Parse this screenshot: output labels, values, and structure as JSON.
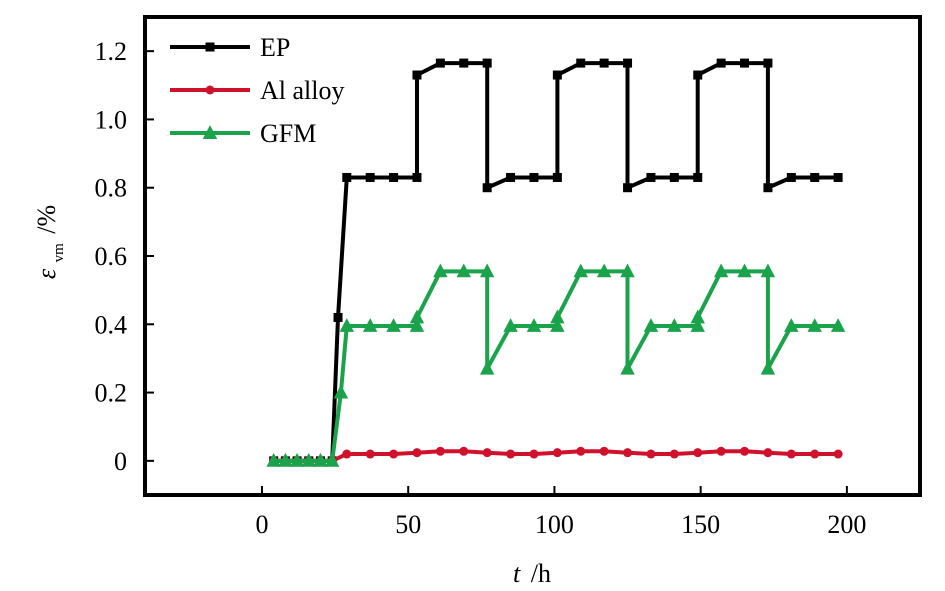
{
  "chart_data": {
    "type": "line",
    "xlabel": {
      "symbol": "t",
      "unit": "/h"
    },
    "ylabel": {
      "symbol": "ε",
      "subscript": "vm",
      "unit": "/%"
    },
    "xlim": [
      -40,
      225
    ],
    "ylim": [
      -0.1,
      1.3
    ],
    "xticks": [
      0,
      50,
      100,
      150,
      200
    ],
    "xtick_labels": [
      "0",
      "50",
      "100",
      "150",
      "200"
    ],
    "yticks": [
      0,
      0.2,
      0.4,
      0.6,
      0.8,
      1.0,
      1.2
    ],
    "ytick_labels": [
      "0",
      "0.2",
      "0.4",
      "0.6",
      "0.8",
      "1.0",
      "1.2"
    ],
    "grid": false,
    "legend_position": "top-left",
    "series": [
      {
        "name": "EP",
        "color": "#000000",
        "marker": "square",
        "x": [
          4,
          8,
          12,
          16,
          20,
          24,
          26,
          29,
          37,
          45,
          53,
          53,
          61,
          69,
          77,
          77,
          85,
          93,
          101,
          101,
          109,
          117,
          125,
          125,
          133,
          141,
          149,
          149,
          157,
          165,
          173,
          173,
          181,
          189,
          197
        ],
        "y": [
          0,
          0,
          0,
          0,
          0,
          0,
          0.42,
          0.83,
          0.83,
          0.83,
          0.83,
          1.13,
          1.165,
          1.165,
          1.165,
          0.8,
          0.83,
          0.83,
          0.83,
          1.13,
          1.165,
          1.165,
          1.165,
          0.8,
          0.83,
          0.83,
          0.83,
          1.13,
          1.165,
          1.165,
          1.165,
          0.8,
          0.83,
          0.83,
          0.83
        ]
      },
      {
        "name": "Al alloy",
        "color": "#d0112b",
        "marker": "circle",
        "x": [
          4,
          8,
          12,
          16,
          20,
          24,
          29,
          37,
          45,
          53,
          61,
          69,
          77,
          85,
          93,
          101,
          109,
          117,
          125,
          133,
          141,
          149,
          157,
          165,
          173,
          181,
          189,
          197
        ],
        "y": [
          0,
          0,
          0,
          0,
          0,
          0,
          0.02,
          0.02,
          0.02,
          0.024,
          0.028,
          0.028,
          0.024,
          0.02,
          0.02,
          0.024,
          0.028,
          0.028,
          0.024,
          0.02,
          0.02,
          0.024,
          0.028,
          0.028,
          0.024,
          0.02,
          0.02,
          0.02
        ]
      },
      {
        "name": "GFM",
        "color": "#1aa34a",
        "marker": "triangle",
        "x": [
          4,
          8,
          12,
          16,
          20,
          24,
          27,
          29,
          37,
          45,
          53,
          53,
          61,
          69,
          77,
          77,
          85,
          93,
          101,
          101,
          109,
          117,
          125,
          125,
          133,
          141,
          149,
          149,
          157,
          165,
          173,
          173,
          181,
          189,
          197
        ],
        "y": [
          0,
          0,
          0,
          0,
          0,
          0,
          0.2,
          0.395,
          0.395,
          0.395,
          0.395,
          0.42,
          0.555,
          0.555,
          0.555,
          0.27,
          0.395,
          0.395,
          0.395,
          0.42,
          0.555,
          0.555,
          0.555,
          0.27,
          0.395,
          0.395,
          0.395,
          0.42,
          0.555,
          0.555,
          0.555,
          0.27,
          0.395,
          0.395,
          0.395
        ]
      }
    ]
  }
}
